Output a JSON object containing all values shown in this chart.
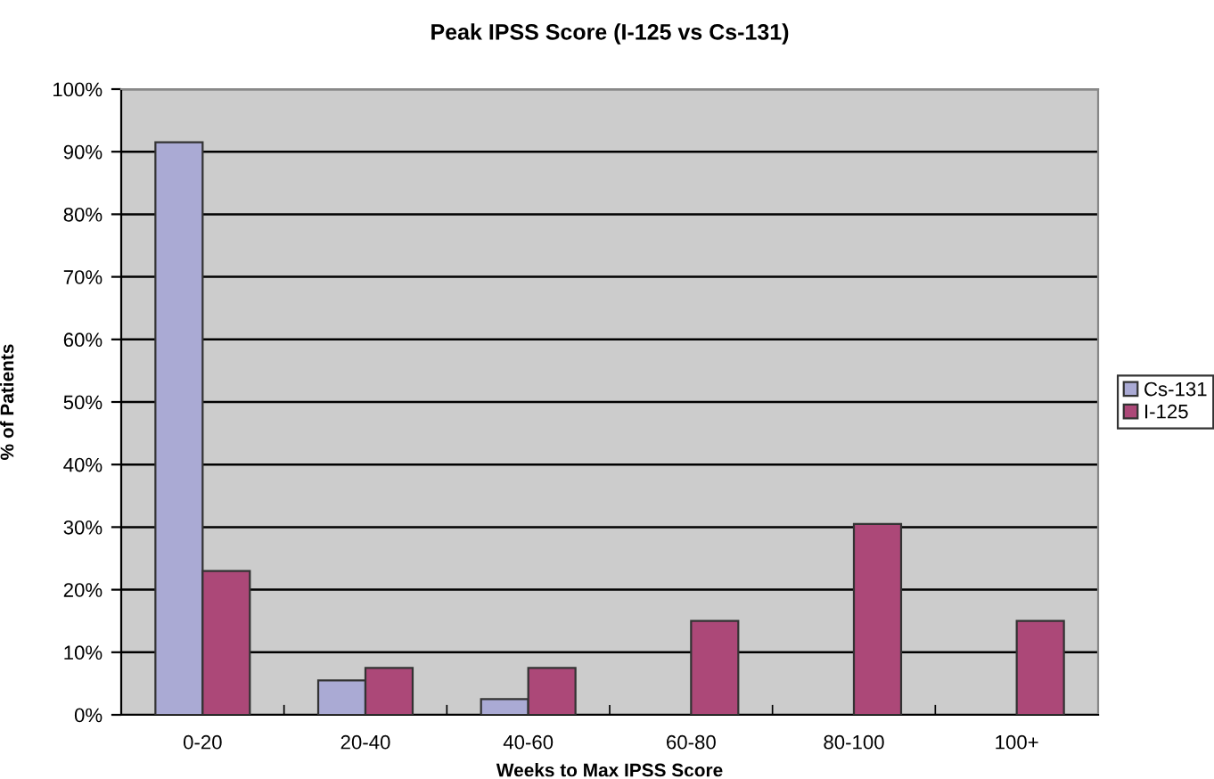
{
  "chart_data": {
    "type": "bar",
    "title": "Peak IPSS Score (I-125 vs Cs-131)",
    "xlabel": "Weeks to Max IPSS Score",
    "ylabel": "% of Patients",
    "categories": [
      "0-20",
      "20-40",
      "40-60",
      "60-80",
      "80-100",
      "100+"
    ],
    "series": [
      {
        "name": "Cs-131",
        "color": "#aaaad4",
        "values": [
          91.5,
          5.5,
          2.5,
          null,
          null,
          null
        ]
      },
      {
        "name": "I-125",
        "color": "#ac4878",
        "values": [
          23,
          7.5,
          7.5,
          15,
          30.5,
          15
        ]
      }
    ],
    "ylim": [
      0,
      100
    ],
    "yticks": [
      {
        "value": 0,
        "label": "0%"
      },
      {
        "value": 10,
        "label": "10%"
      },
      {
        "value": 20,
        "label": "20%"
      },
      {
        "value": 30,
        "label": "30%"
      },
      {
        "value": 40,
        "label": "40%"
      },
      {
        "value": 50,
        "label": "50%"
      },
      {
        "value": 60,
        "label": "60%"
      },
      {
        "value": 70,
        "label": "70%"
      },
      {
        "value": 80,
        "label": "80%"
      },
      {
        "value": 90,
        "label": "90%"
      },
      {
        "value": 100,
        "label": "100%"
      }
    ],
    "grid": "y",
    "legend": "right"
  }
}
